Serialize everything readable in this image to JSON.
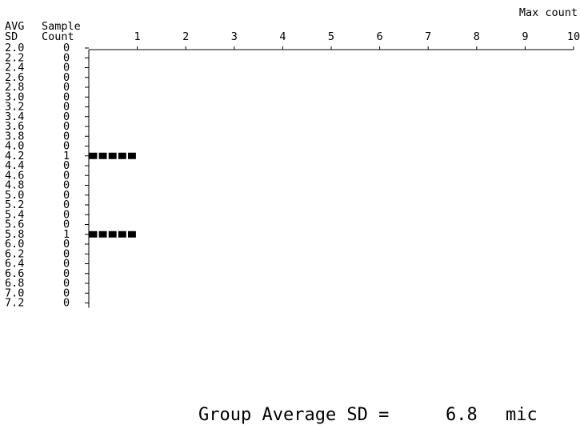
{
  "chart_data": {
    "type": "bar",
    "orientation": "horizontal",
    "top_label": "Max count",
    "row_header_1": [
      "AVG",
      "SD"
    ],
    "row_header_2": [
      "Sample",
      "Count"
    ],
    "x_ticks": [
      "1",
      "2",
      "3",
      "4",
      "5",
      "6",
      "7",
      "8",
      "9",
      "10"
    ],
    "xlim": [
      0,
      10
    ],
    "categories": [
      "2.0",
      "2.2",
      "2.4",
      "2.6",
      "2.8",
      "3.0",
      "3.2",
      "3.4",
      "3.6",
      "3.8",
      "4.0",
      "4.2",
      "4.4",
      "4.6",
      "4.8",
      "5.0",
      "5.2",
      "5.4",
      "5.6",
      "5.8",
      "6.0",
      "6.2",
      "6.4",
      "6.6",
      "6.8",
      "7.0",
      "7.2"
    ],
    "values": [
      0,
      0,
      0,
      0,
      0,
      0,
      0,
      0,
      0,
      0,
      0,
      1,
      0,
      0,
      0,
      0,
      0,
      0,
      0,
      1,
      0,
      0,
      0,
      0,
      0,
      0,
      0
    ],
    "footer": {
      "label": "Group Average SD =",
      "value": "6.8",
      "unit": "mic"
    }
  }
}
